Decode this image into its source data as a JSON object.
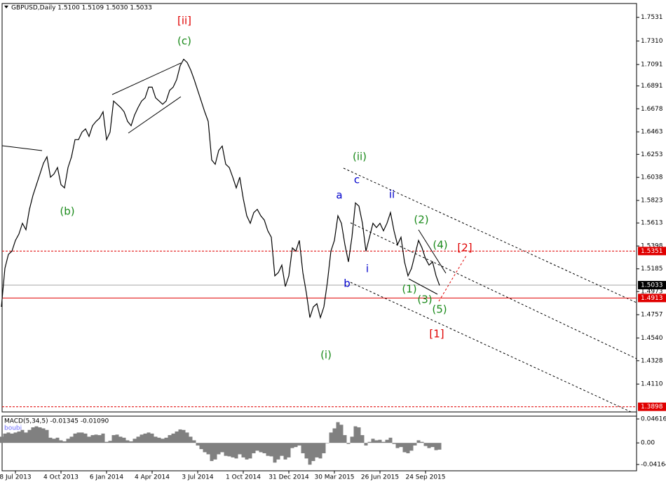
{
  "chart_data": {
    "type": "line",
    "title": "GBPUSD,Daily  1.5100 1.5109 1.5030 1.5033",
    "categories": [
      null,
      null,
      null,
      null,
      "8 Jul 2013",
      null,
      null,
      null,
      null,
      null,
      null,
      null,
      null,
      null,
      null,
      null,
      null,
      "4 Oct 2013",
      null,
      null,
      null,
      null,
      null,
      null,
      null,
      null,
      null,
      null,
      null,
      null,
      "6 Jan 2014",
      null,
      null,
      null,
      null,
      null,
      null,
      null,
      null,
      null,
      null,
      null,
      null,
      "4 Apr 2014",
      null,
      null,
      null,
      null,
      null,
      null,
      null,
      null,
      null,
      null,
      null,
      null,
      "3 Jul 2014",
      null,
      null,
      null,
      null,
      null,
      null,
      null,
      null,
      null,
      null,
      null,
      null,
      "1 Oct 2014",
      null,
      null,
      null,
      null,
      null,
      null,
      null,
      null,
      null,
      null,
      null,
      null,
      "31 Dec 2014",
      null,
      null,
      null,
      null,
      null,
      null,
      null,
      null,
      null,
      null,
      null,
      null,
      "30 Mar 2015",
      null,
      null,
      null,
      null,
      null,
      null,
      null,
      null,
      null,
      null,
      null,
      null,
      "26 Jun 2015",
      null,
      null,
      null,
      null,
      null,
      null,
      null,
      null,
      null,
      null,
      null,
      null,
      "24 Sep 2015",
      null,
      null,
      null,
      null
    ],
    "values": [
      1.483,
      1.519,
      1.532,
      1.535,
      1.545,
      1.551,
      1.561,
      1.555,
      1.574,
      1.587,
      1.597,
      1.607,
      1.617,
      1.623,
      1.604,
      1.607,
      1.613,
      1.597,
      1.594,
      1.613,
      1.623,
      1.639,
      1.639,
      1.646,
      1.649,
      1.642,
      1.652,
      1.656,
      1.659,
      1.665,
      1.639,
      1.646,
      1.675,
      1.672,
      1.669,
      1.665,
      1.656,
      1.652,
      1.662,
      1.669,
      1.675,
      1.678,
      1.688,
      1.688,
      1.678,
      1.675,
      1.672,
      1.675,
      1.685,
      1.688,
      1.695,
      1.708,
      1.714,
      1.711,
      1.704,
      1.695,
      1.685,
      1.675,
      1.665,
      1.656,
      1.62,
      1.616,
      1.629,
      1.633,
      1.616,
      1.613,
      1.604,
      1.594,
      1.604,
      1.584,
      1.568,
      1.561,
      1.571,
      1.574,
      1.568,
      1.564,
      1.554,
      1.548,
      1.512,
      1.515,
      1.522,
      1.502,
      1.512,
      1.538,
      1.535,
      1.545,
      1.515,
      1.496,
      1.473,
      1.483,
      1.486,
      1.473,
      1.483,
      1.506,
      1.535,
      1.545,
      1.568,
      1.561,
      1.541,
      1.525,
      1.548,
      1.58,
      1.577,
      1.561,
      1.535,
      1.548,
      1.561,
      1.557,
      1.561,
      1.554,
      1.561,
      1.571,
      1.554,
      1.541,
      1.548,
      1.525,
      1.512,
      1.519,
      1.532,
      1.545,
      1.538,
      1.528,
      1.522,
      1.525,
      1.512,
      1.503
    ],
    "color": "#000000",
    "ylim": [
      1.385,
      1.766
    ],
    "yticks": [
      1.7531,
      {
        "value": 1.731,
        "label": "1.7310"
      },
      1.7091,
      1.6891,
      1.6678,
      1.6463,
      1.6253,
      1.6038,
      1.5823,
      1.5613,
      1.5398,
      1.5185,
      1.4973,
      1.4757,
      {
        "value": 1.454,
        "label": "1.4540"
      },
      1.4328,
      {
        "value": 1.411,
        "label": "1.4110"
      }
    ],
    "levels": [
      {
        "value": 1.5351,
        "color": "#e00000",
        "style": "dashed"
      },
      {
        "value": 1.5033,
        "color": "#000000",
        "style": "solid"
      },
      {
        "value": 1.4913,
        "color": "#e00000",
        "style": "solid"
      },
      {
        "value": 1.3898,
        "color": "#e00000",
        "style": "dashed"
      }
    ],
    "annotations": [
      {
        "text": "[ii]",
        "color": "#e00000"
      },
      {
        "text": "(c)",
        "color": "#1a8a1a"
      },
      {
        "text": "(b)",
        "color": "#1a8a1a"
      },
      {
        "text": "(ii)",
        "color": "#1a8a1a"
      },
      {
        "text": "c",
        "color": "#0000cc"
      },
      {
        "text": "a",
        "color": "#0000cc"
      },
      {
        "text": "ii",
        "color": "#0000cc"
      },
      {
        "text": "i",
        "color": "#0000cc"
      },
      {
        "text": "b",
        "color": "#0000cc"
      },
      {
        "text": "(i)",
        "color": "#1a8a1a"
      },
      {
        "text": "(2)",
        "color": "#1a8a1a"
      },
      {
        "text": "(4)",
        "color": "#1a8a1a"
      },
      {
        "text": "[2]",
        "color": "#e00000"
      },
      {
        "text": "(1)",
        "color": "#1a8a1a"
      },
      {
        "text": "(3)",
        "color": "#1a8a1a"
      },
      {
        "text": "(5)",
        "color": "#1a8a1a"
      },
      {
        "text": "[1]",
        "color": "#e00000"
      }
    ],
    "macd": {
      "title": "MACD(5,34,5) -0.01345 -0.01090",
      "subtitle": "boubi",
      "color": "#808080",
      "values": [
        0.012,
        0.018,
        0.02,
        0.018,
        0.02,
        0.022,
        0.025,
        0.02,
        0.025,
        0.03,
        0.032,
        0.03,
        0.028,
        0.025,
        0.01,
        0.008,
        0.01,
        0.005,
        0.003,
        0.008,
        0.012,
        0.018,
        0.02,
        0.02,
        0.018,
        0.012,
        0.015,
        0.016,
        0.015,
        0.018,
        0.002,
        0.004,
        0.015,
        0.016,
        0.012,
        0.01,
        0.005,
        0.003,
        0.008,
        0.012,
        0.016,
        0.018,
        0.02,
        0.018,
        0.012,
        0.01,
        0.008,
        0.01,
        0.015,
        0.018,
        0.022,
        0.026,
        0.025,
        0.02,
        0.012,
        0.005,
        -0.005,
        -0.012,
        -0.018,
        -0.022,
        -0.035,
        -0.032,
        -0.022,
        -0.018,
        -0.025,
        -0.026,
        -0.028,
        -0.03,
        -0.022,
        -0.028,
        -0.032,
        -0.03,
        -0.02,
        -0.015,
        -0.018,
        -0.02,
        -0.025,
        -0.026,
        -0.038,
        -0.032,
        -0.025,
        -0.032,
        -0.028,
        -0.01,
        -0.008,
        -0.005,
        -0.02,
        -0.03,
        -0.042,
        -0.035,
        -0.028,
        -0.03,
        -0.02,
        0.0,
        0.02,
        0.028,
        0.04,
        0.035,
        0.015,
        -0.002,
        0.012,
        0.032,
        0.03,
        0.015,
        -0.005,
        0.002,
        0.008,
        0.005,
        0.006,
        0.002,
        0.006,
        0.01,
        -0.002,
        -0.01,
        -0.008,
        -0.018,
        -0.02,
        -0.015,
        -0.005,
        0.005,
        0.002,
        -0.006,
        -0.01,
        -0.008,
        -0.014,
        -0.013
      ],
      "ylim": [
        -0.0538,
        0.0516
      ],
      "yticks": [
        0.04616,
        {
          "value": 0,
          "label": "0.00"
        },
        -0.04164
      ]
    }
  }
}
